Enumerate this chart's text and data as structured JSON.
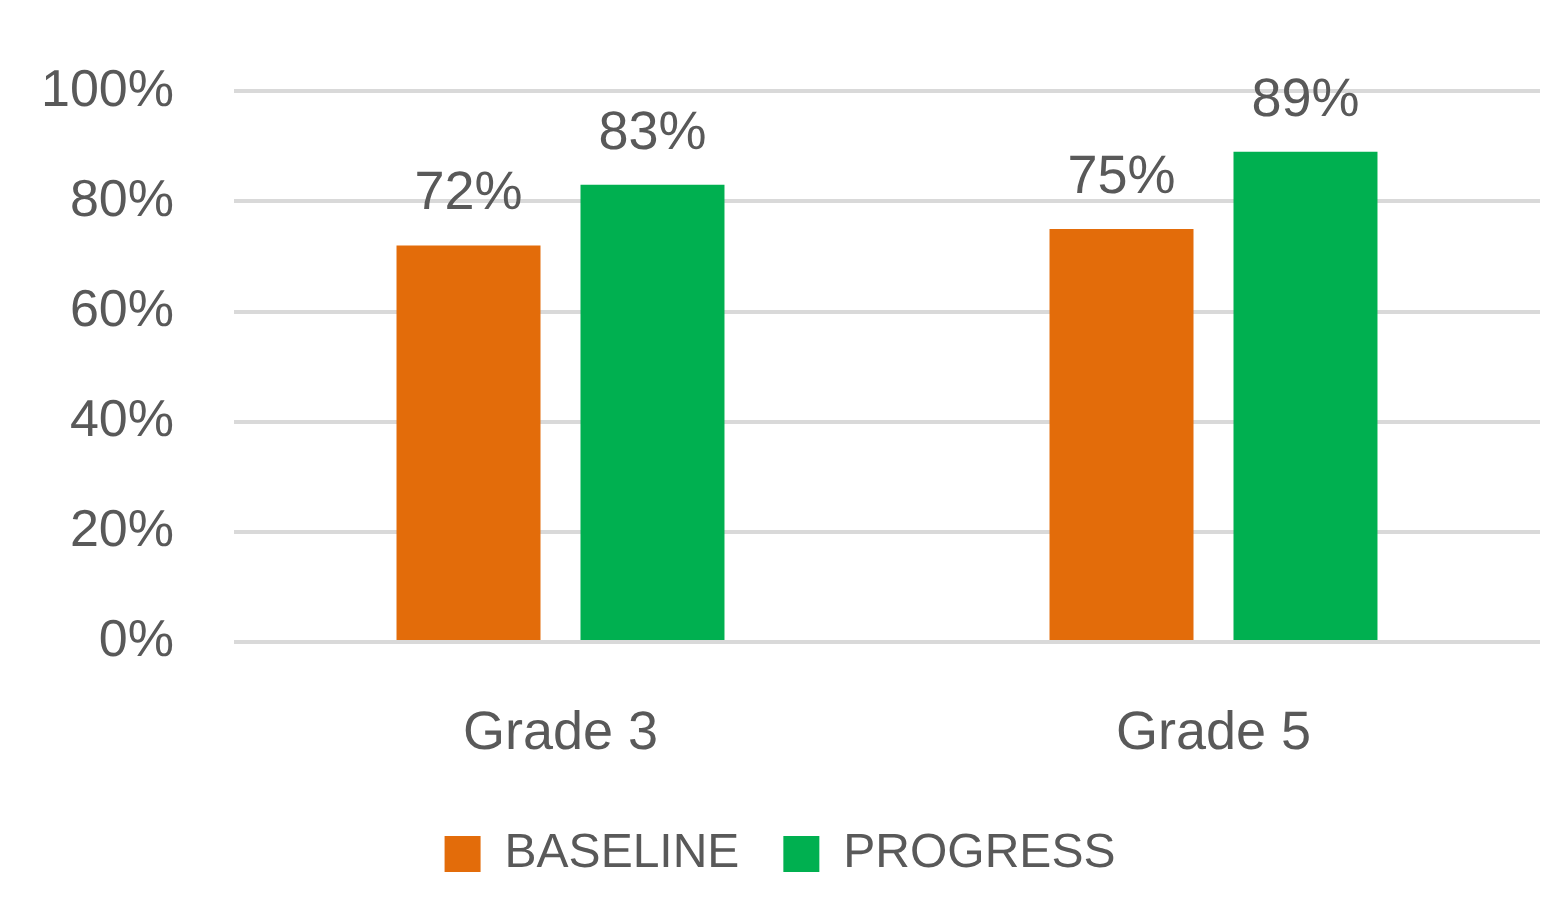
{
  "chart_data": {
    "type": "bar",
    "categories": [
      "Grade 3",
      "Grade 5"
    ],
    "series": [
      {
        "name": "BASELINE",
        "color": "#e36c0a",
        "values": [
          72,
          75
        ],
        "value_labels": [
          "72%",
          "75%"
        ]
      },
      {
        "name": "PROGRESS",
        "color": "#00b050",
        "values": [
          83,
          89
        ],
        "value_labels": [
          "83%",
          "89%"
        ]
      }
    ],
    "ylim": [
      0,
      100
    ],
    "yticks": [
      {
        "value": 0,
        "label": "0%"
      },
      {
        "value": 20,
        "label": "20%"
      },
      {
        "value": 40,
        "label": "40%"
      },
      {
        "value": 60,
        "label": "60%"
      },
      {
        "value": 80,
        "label": "80%"
      },
      {
        "value": 100,
        "label": "100%"
      }
    ],
    "grid": "y",
    "legend": "bottom"
  }
}
